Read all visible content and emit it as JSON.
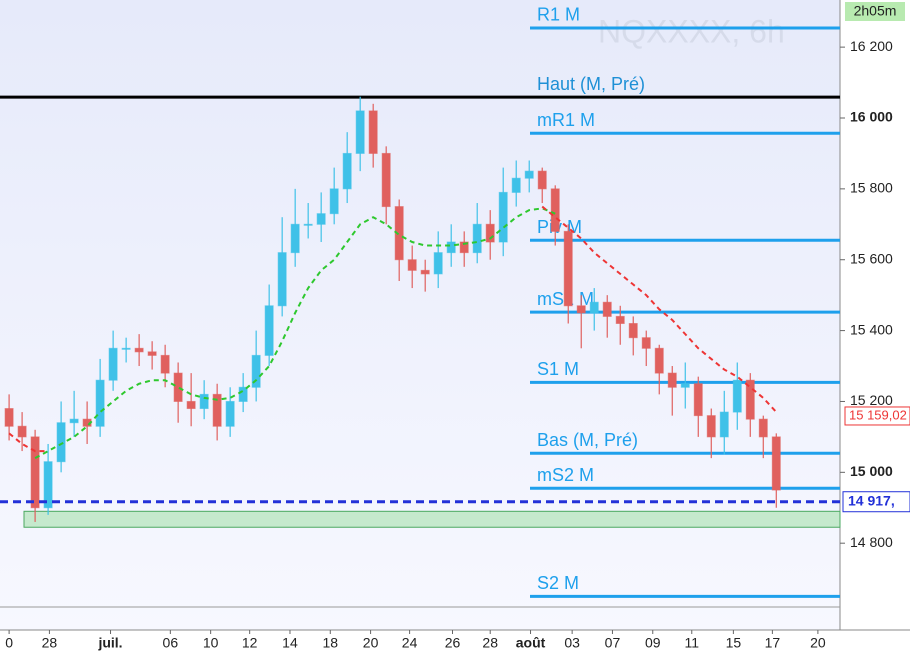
{
  "chart_data": {
    "type": "candlestick",
    "watermark": "NQXXXX, 6h",
    "timer": "2h05m",
    "up_color": "#3fc1e8",
    "down_color": "#e0605e",
    "xlim": [
      -0.7,
      63.9
    ],
    "ylim": [
      14555,
      16333
    ],
    "xticks": [
      0,
      {
        "value": 3.1,
        "label": "28"
      },
      {
        "value": 7.8,
        "label": "juil.",
        "bold": true
      },
      {
        "value": 12.4,
        "label": "06"
      },
      {
        "value": 15.5,
        "label": "10"
      },
      {
        "value": 18.5,
        "label": "12"
      },
      {
        "value": 21.6,
        "label": "14"
      },
      {
        "value": 24.7,
        "label": "18"
      },
      {
        "value": 27.8,
        "label": "20"
      },
      {
        "value": 30.8,
        "label": "24"
      },
      {
        "value": 34.1,
        "label": "26"
      },
      {
        "value": 37,
        "label": "28"
      },
      {
        "value": 40.1,
        "label": "août",
        "bold": true
      },
      {
        "value": 43.3,
        "label": "03"
      },
      {
        "value": 46.4,
        "label": "07"
      },
      {
        "value": 49.5,
        "label": "09"
      },
      {
        "value": 52.5,
        "label": "11"
      },
      {
        "value": 55.7,
        "label": "15"
      },
      {
        "value": 58.7,
        "label": "17"
      },
      {
        "value": 62.2,
        "label": "20"
      }
    ],
    "yticks": [
      {
        "value": 14800,
        "label": "14 800"
      },
      {
        "value": 15000,
        "label": "15 000",
        "bold": true
      },
      {
        "value": 15200,
        "label": "15 200"
      },
      {
        "value": 15400,
        "label": "15 400"
      },
      {
        "value": 15600,
        "label": "15 600"
      },
      {
        "value": 15800,
        "label": "15 800"
      },
      {
        "value": 16000,
        "label": "16 000",
        "bold": true
      },
      {
        "value": 16200,
        "label": "16 200"
      }
    ],
    "open": [
      15180,
      15130,
      15100,
      14900,
      15030,
      15140,
      15150,
      15130,
      15260,
      15350,
      15350,
      15340,
      15330,
      15280,
      15200,
      15180,
      15220,
      15130,
      15200,
      15240,
      15330,
      15470,
      15620,
      15700,
      15700,
      15730,
      15800,
      15900,
      16020,
      15900,
      15750,
      15600,
      15570,
      15560,
      15620,
      15650,
      15620,
      15700,
      15650,
      15790,
      15830,
      15850,
      15800,
      15680,
      15470,
      15450,
      15480,
      15440,
      15420,
      15380,
      15350,
      15280,
      15240,
      15250,
      15160,
      15100,
      15170,
      15260,
      15150,
      15100
    ],
    "high": [
      15220,
      15170,
      15120,
      15080,
      15200,
      15230,
      15200,
      15320,
      15400,
      15380,
      15390,
      15370,
      15360,
      15310,
      15280,
      15260,
      15250,
      15240,
      15280,
      15400,
      15530,
      15720,
      15800,
      15760,
      15790,
      15860,
      15960,
      16060,
      16040,
      15920,
      15770,
      15640,
      15600,
      15680,
      15700,
      15680,
      15760,
      15740,
      15860,
      15880,
      15880,
      15860,
      15810,
      15700,
      15500,
      15520,
      15500,
      15470,
      15440,
      15400,
      15360,
      15300,
      15310,
      15270,
      15180,
      15230,
      15310,
      15280,
      15160,
      15110
    ],
    "low": [
      15090,
      15060,
      14860,
      14880,
      15000,
      15100,
      15080,
      15100,
      15230,
      15310,
      15300,
      15290,
      15240,
      15140,
      15130,
      15150,
      15090,
      15100,
      15170,
      15200,
      15300,
      15440,
      15580,
      15660,
      15650,
      15700,
      15760,
      15850,
      15860,
      15700,
      15540,
      15520,
      15510,
      15520,
      15580,
      15580,
      15590,
      15600,
      15610,
      15750,
      15790,
      15760,
      15640,
      15420,
      15350,
      15400,
      15380,
      15360,
      15330,
      15300,
      15220,
      15160,
      15180,
      15100,
      15040,
      15050,
      15120,
      15100,
      15040,
      14900
    ],
    "close": [
      15130,
      15100,
      14900,
      15030,
      15140,
      15150,
      15130,
      15260,
      15350,
      15350,
      15340,
      15330,
      15280,
      15200,
      15180,
      15220,
      15130,
      15200,
      15240,
      15330,
      15470,
      15620,
      15700,
      15700,
      15730,
      15800,
      15900,
      16020,
      15900,
      15750,
      15600,
      15570,
      15560,
      15620,
      15650,
      15620,
      15700,
      15650,
      15790,
      15830,
      15850,
      15800,
      15680,
      15470,
      15450,
      15480,
      15440,
      15420,
      15380,
      15350,
      15280,
      15240,
      15250,
      15160,
      15100,
      15170,
      15260,
      15150,
      15100,
      14950
    ],
    "ma": [
      {
        "color": "#2ec82e",
        "values": [
          null,
          null,
          15040,
          15060,
          15080,
          15100,
          15130,
          15170,
          15200,
          15230,
          15250,
          15260,
          15260,
          15240,
          15220,
          15210,
          15205,
          15210,
          15230,
          15260,
          15300,
          15370,
          15450,
          15520,
          15570,
          15600,
          15650,
          15700,
          15720,
          15700,
          15670,
          15650,
          15640,
          15640,
          15640,
          15645,
          15650,
          15660,
          15690,
          15720,
          15740,
          15745,
          15730,
          null,
          null,
          null,
          null,
          null,
          null,
          null,
          null,
          null,
          null,
          null,
          null,
          null,
          null,
          null,
          null,
          null
        ]
      },
      {
        "color": "#ee3535",
        "values": [
          15110,
          15080,
          15060,
          15060,
          null,
          null,
          null,
          null,
          null,
          null,
          null,
          null,
          null,
          null,
          null,
          null,
          null,
          null,
          null,
          null,
          null,
          null,
          null,
          null,
          null,
          null,
          null,
          null,
          null,
          null,
          null,
          null,
          null,
          null,
          null,
          null,
          null,
          null,
          null,
          null,
          null,
          15750,
          15720,
          15690,
          15660,
          15620,
          15590,
          15560,
          15530,
          15500,
          15460,
          15430,
          15390,
          15350,
          15320,
          15290,
          15270,
          15240,
          15210,
          15170
        ]
      }
    ],
    "levels": [
      {
        "name": "R1 M",
        "value": 16254,
        "color": "#1ea0ec"
      },
      {
        "name": "Haut (M, Pré)",
        "value": 16059,
        "color": "#000000",
        "extended": true
      },
      {
        "name": "mR1 M",
        "value": 15957,
        "color": "#1ea0ec"
      },
      {
        "name": "Piv M",
        "value": 15655,
        "color": "#1ea0ec"
      },
      {
        "name": "mS1 M",
        "value": 15452,
        "color": "#1ea0ec"
      },
      {
        "name": "S1 M",
        "value": 15254,
        "color": "#1ea0ec"
      },
      {
        "name": "Bas (M, Pré)",
        "value": 15054,
        "color": "#1ea0ec"
      },
      {
        "name": "mS2 M",
        "value": 14955,
        "color": "#1ea0ec"
      },
      {
        "name": "S2 M",
        "value": 14650,
        "color": "#1ea0ec"
      }
    ],
    "zone": [
      14845,
      14890
    ],
    "price_line": {
      "value": 14917,
      "label": "14 917,",
      "color": "#2230d8"
    },
    "ma_label": {
      "value": 15159.02,
      "label": "15 159,02",
      "color": "#ee3535"
    }
  }
}
